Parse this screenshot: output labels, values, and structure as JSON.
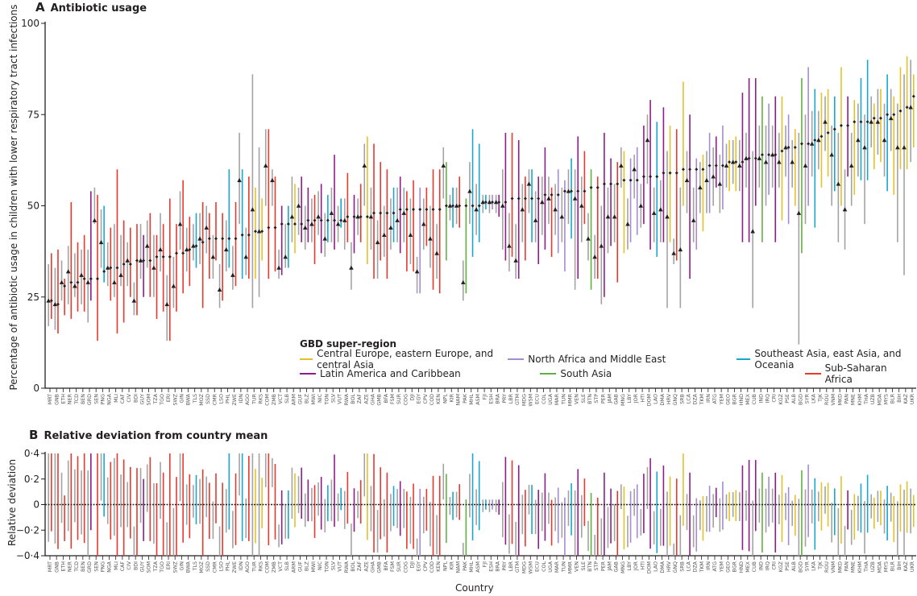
{
  "colors": {
    "Central Europe, eastern Europe, and central Asia": "#e2c22b",
    "Latin America and Caribbean": "#8f1d87",
    "North Africa and Middle East": "#a58bd0",
    "South Asia": "#62b03f",
    "Southeast Asia, east Asia, and Oceania": "#1aa6cd",
    "Sub-Saharan Africa": "#e8392e",
    "other_range": "#a3a3a3",
    "mean_marker": "#231f20"
  },
  "legend": {
    "title": "GBD super-region",
    "entries": [
      "Central Europe, eastern Europe, and central Asia",
      "Latin America and Caribbean",
      "North Africa and Middle East",
      "South Asia",
      "Southeast Asia, east Asia, and Oceania",
      "Sub-Saharan Africa"
    ]
  },
  "chart_data": [
    {
      "type": "scatter",
      "panel": "A",
      "title": "Antibiotic usage",
      "ylabel": "Percentage of antibiotic usage in children with lower respiratory tract infections",
      "xlabel": "",
      "ylim": [
        0,
        100
      ],
      "yticks": [
        "0",
        "25",
        "50",
        "75",
        "100"
      ],
      "fields": [
        "country",
        "super_region_index",
        "mean",
        "range_low",
        "range_high",
        "triangle",
        "gray_low",
        "gray_high"
      ],
      "countries": [
        [
          "MRT",
          5,
          24,
          19,
          37,
          24,
          17,
          34
        ],
        [
          "GNB",
          5,
          23,
          15,
          38,
          23,
          16,
          33
        ],
        [
          "ETH",
          5,
          28,
          20,
          30,
          29,
          24,
          35
        ],
        [
          "NER",
          5,
          29,
          19,
          51,
          32,
          23,
          39
        ],
        [
          "TCD",
          5,
          29,
          21,
          40,
          28,
          25,
          37
        ],
        [
          "BEN",
          5,
          30,
          21,
          42,
          31,
          23,
          38
        ],
        [
          "GRD",
          1,
          30,
          24,
          54,
          29,
          18,
          38
        ],
        [
          "SEN",
          5,
          30,
          13,
          53,
          46,
          45,
          55
        ],
        [
          "PNG",
          4,
          32,
          29,
          50,
          40,
          33,
          49
        ],
        [
          "NGA",
          5,
          33,
          24,
          44,
          33,
          28,
          40
        ],
        [
          "MLI",
          5,
          33,
          15,
          60,
          29,
          25,
          45
        ],
        [
          "CAF",
          5,
          34,
          18,
          46,
          31,
          28,
          42
        ],
        [
          "CIV",
          5,
          34,
          25,
          44,
          35,
          28,
          40
        ],
        [
          "BDI",
          5,
          35,
          20,
          45,
          24,
          20,
          29
        ],
        [
          "GUY",
          1,
          35,
          25,
          42,
          35,
          30,
          45
        ],
        [
          "SOM",
          5,
          35,
          25,
          48,
          39,
          33,
          46
        ],
        [
          "TZA",
          5,
          36,
          19,
          42,
          33,
          25,
          42
        ],
        [
          "TGO",
          5,
          36,
          21,
          45,
          38,
          32,
          48
        ],
        [
          "ERI",
          5,
          36,
          13,
          52,
          23,
          13,
          31
        ],
        [
          "SWZ",
          5,
          37,
          21,
          45,
          28,
          22,
          36
        ],
        [
          "GIN",
          5,
          37,
          26,
          57,
          45,
          38,
          54
        ],
        [
          "BWA",
          5,
          38,
          28,
          47,
          38,
          32,
          44
        ],
        [
          "TLS",
          4,
          39,
          33,
          48,
          39,
          35,
          45
        ],
        [
          "MOZ",
          5,
          40,
          22,
          51,
          41,
          34,
          48
        ],
        [
          "SSD",
          5,
          41,
          30,
          48,
          44,
          37,
          50
        ],
        [
          "CMR",
          5,
          41,
          35,
          51,
          36,
          30,
          42
        ],
        [
          "LSO",
          5,
          41,
          24,
          48,
          27,
          22,
          34
        ],
        [
          "PHL",
          4,
          41,
          33,
          60,
          38,
          32,
          46
        ],
        [
          "ZWE",
          5,
          41,
          28,
          51,
          31,
          27,
          39
        ],
        [
          "IDN",
          4,
          42,
          30,
          60,
          57,
          45,
          70
        ],
        [
          "AGO",
          5,
          42,
          30,
          58,
          36,
          31,
          44
        ],
        [
          "TUR",
          0,
          43,
          30,
          55,
          49,
          22,
          86
        ],
        [
          "RKS",
          0,
          43,
          35,
          52,
          43,
          25,
          66
        ],
        [
          "COM",
          5,
          44,
          30,
          71,
          61,
          50,
          71
        ],
        [
          "ZMB",
          5,
          44,
          32,
          58,
          57,
          50,
          60
        ],
        [
          "VCT",
          1,
          45,
          31,
          50,
          33,
          30,
          38
        ],
        [
          "SLB",
          4,
          45,
          33,
          50,
          36,
          33,
          45
        ],
        [
          "ARM",
          0,
          45,
          37,
          56,
          47,
          40,
          58
        ],
        [
          "GUF",
          1,
          45,
          40,
          58,
          50,
          42,
          55
        ],
        [
          "BLZ",
          1,
          46,
          40,
          55,
          44,
          38,
          50
        ],
        [
          "MWI",
          5,
          46,
          34,
          53,
          45,
          40,
          52
        ],
        [
          "NIC",
          1,
          46,
          37,
          56,
          47,
          42,
          54
        ],
        [
          "TON",
          4,
          46,
          40,
          53,
          41,
          36,
          48
        ],
        [
          "SLV",
          1,
          46,
          38,
          64,
          48,
          40,
          55
        ],
        [
          "VUT",
          4,
          46,
          44,
          52,
          45,
          40,
          50
        ],
        [
          "RWA",
          5,
          47,
          40,
          59,
          46,
          38,
          52
        ],
        [
          "BOL",
          1,
          47,
          37,
          53,
          33,
          27,
          40
        ],
        [
          "ZAF",
          5,
          47,
          40,
          56,
          47,
          42,
          52
        ],
        [
          "AZE",
          0,
          47,
          34,
          69,
          61,
          50,
          67
        ],
        [
          "GHA",
          5,
          48,
          30,
          67,
          47,
          38,
          55
        ],
        [
          "GMB",
          5,
          48,
          35,
          62,
          40,
          30,
          46
        ],
        [
          "BFA",
          5,
          48,
          30,
          60,
          42,
          36,
          50
        ],
        [
          "FSM",
          4,
          48,
          40,
          55,
          44,
          38,
          52
        ],
        [
          "SUR",
          1,
          49,
          37,
          58,
          46,
          40,
          55
        ],
        [
          "COG",
          5,
          49,
          32,
          54,
          48,
          40,
          55
        ],
        [
          "DJI",
          5,
          49,
          32,
          57,
          42,
          34,
          52
        ],
        [
          "EGY",
          2,
          49,
          26,
          55,
          32,
          26,
          36
        ],
        [
          "CPV",
          5,
          49,
          39,
          55,
          45,
          38,
          52
        ],
        [
          "COD",
          5,
          49,
          27,
          60,
          41,
          33,
          50
        ],
        [
          "KEN",
          5,
          49,
          26,
          60,
          37,
          30,
          45
        ],
        [
          "NPL",
          3,
          50,
          35,
          62,
          61,
          52,
          66
        ],
        [
          "KIR",
          4,
          50,
          44,
          55,
          50,
          46,
          53
        ],
        [
          "NAM",
          5,
          50,
          44,
          58,
          50,
          45,
          55
        ],
        [
          "PAK",
          3,
          50,
          26,
          52,
          29,
          24,
          35
        ],
        [
          "MHL",
          4,
          50,
          36,
          71,
          54,
          45,
          62
        ],
        [
          "ASM",
          4,
          50,
          40,
          67,
          49,
          42,
          56
        ],
        [
          "FJI",
          4,
          51,
          49,
          53,
          51,
          48,
          53
        ],
        [
          "ESH",
          2,
          51,
          49,
          53,
          51,
          48,
          53
        ],
        [
          "BRA",
          1,
          51,
          47,
          53,
          51,
          48,
          53
        ],
        [
          "PRY",
          1,
          51,
          35,
          70,
          50,
          38,
          60
        ],
        [
          "LBR",
          5,
          52,
          36,
          70,
          39,
          32,
          48
        ],
        [
          "GTM",
          1,
          52,
          30,
          68,
          35,
          30,
          45
        ],
        [
          "MDG",
          5,
          52,
          35,
          58,
          49,
          40,
          56
        ],
        [
          "WSM",
          4,
          52,
          40,
          60,
          56,
          48,
          60
        ],
        [
          "ECU",
          1,
          52,
          34,
          58,
          46,
          40,
          54
        ],
        [
          "COL",
          1,
          53,
          38,
          66,
          51,
          42,
          58
        ],
        [
          "UGA",
          5,
          53,
          36,
          55,
          52,
          45,
          58
        ],
        [
          "MAR",
          2,
          53,
          37,
          60,
          49,
          42,
          56
        ],
        [
          "TUN",
          2,
          54,
          32,
          57,
          47,
          40,
          55
        ],
        [
          "MMR",
          4,
          54,
          41,
          63,
          54,
          45,
          60
        ],
        [
          "VEN",
          1,
          54,
          30,
          69,
          52,
          27,
          60
        ],
        [
          "SLE",
          5,
          54,
          45,
          65,
          50,
          40,
          58
        ],
        [
          "BTN",
          3,
          55,
          27,
          60,
          41,
          35,
          48
        ],
        [
          "STP",
          5,
          55,
          30,
          58,
          36,
          30,
          42
        ],
        [
          "PER",
          1,
          56,
          25,
          70,
          39,
          23,
          50
        ],
        [
          "JAM",
          1,
          56,
          39,
          63,
          47,
          37,
          55
        ],
        [
          "GAB",
          5,
          56,
          29,
          62,
          47,
          40,
          56
        ],
        [
          "MNG",
          0,
          57,
          37,
          65,
          61,
          55,
          66
        ],
        [
          "LBY",
          2,
          57,
          40,
          63,
          45,
          38,
          52
        ],
        [
          "JOR",
          2,
          57,
          42,
          66,
          60,
          52,
          64
        ],
        [
          "HTI",
          1,
          58,
          45,
          72,
          50,
          44,
          56
        ],
        [
          "DOM",
          1,
          58,
          38,
          79,
          68,
          56,
          75
        ],
        [
          "LAO",
          4,
          58,
          36,
          73,
          48,
          40,
          55
        ],
        [
          "DMA",
          1,
          59,
          40,
          77,
          49,
          40,
          57
        ],
        [
          "HRV",
          0,
          59,
          40,
          72,
          47,
          22,
          65
        ],
        [
          "GNQ",
          5,
          59,
          35,
          71,
          37,
          34,
          41
        ],
        [
          "SRB",
          0,
          60,
          50,
          84,
          38,
          22,
          55
        ],
        [
          "LCA",
          1,
          60,
          30,
          75,
          57,
          48,
          65
        ],
        [
          "DZA",
          2,
          60,
          38,
          63,
          46,
          40,
          55
        ],
        [
          "TKM",
          0,
          60,
          43,
          64,
          55,
          48,
          62
        ],
        [
          "IRN",
          2,
          61,
          48,
          70,
          57,
          48,
          65
        ],
        [
          "ATG",
          1,
          61,
          55,
          69,
          58,
          50,
          66
        ],
        [
          "YEM",
          2,
          61,
          49,
          72,
          56,
          48,
          64
        ],
        [
          "GEO",
          0,
          62,
          54,
          68,
          61,
          55,
          67
        ],
        [
          "BGR",
          0,
          62,
          54,
          69,
          62,
          56,
          68
        ],
        [
          "HND",
          1,
          62,
          40,
          81,
          61,
          54,
          68
        ],
        [
          "MEX",
          1,
          63,
          40,
          85,
          63,
          55,
          70
        ],
        [
          "CUB",
          1,
          63,
          50,
          85,
          43,
          22,
          65
        ],
        [
          "IND",
          3,
          64,
          40,
          80,
          63,
          55,
          72
        ],
        [
          "IRQ",
          2,
          64,
          53,
          78,
          62,
          50,
          72
        ],
        [
          "CRI",
          1,
          64,
          40,
          80,
          64,
          55,
          72
        ],
        [
          "KGZ",
          0,
          65,
          46,
          80,
          62,
          55,
          70
        ],
        [
          "PSE",
          2,
          66,
          45,
          75,
          66,
          58,
          72
        ],
        [
          "ALB",
          0,
          66,
          50,
          71,
          62,
          55,
          68
        ],
        [
          "BGD",
          3,
          67,
          37,
          85,
          48,
          12,
          70
        ],
        [
          "SYR",
          2,
          67,
          50,
          88,
          61,
          45,
          75
        ],
        [
          "LKA",
          4,
          68,
          44,
          82,
          67,
          58,
          76
        ],
        [
          "TJK",
          0,
          69,
          55,
          81,
          68,
          60,
          76
        ],
        [
          "ROU",
          0,
          70,
          58,
          82,
          73,
          65,
          80
        ],
        [
          "VNM",
          4,
          71,
          54,
          80,
          64,
          50,
          72
        ],
        [
          "MKD",
          0,
          72,
          50,
          88,
          56,
          40,
          70
        ],
        [
          "PAN",
          1,
          72,
          58,
          80,
          49,
          38,
          60
        ],
        [
          "MNE",
          0,
          73,
          53,
          79,
          61,
          50,
          70
        ],
        [
          "KHM",
          4,
          73,
          57,
          85,
          68,
          58,
          78
        ],
        [
          "THA",
          4,
          73,
          57,
          90,
          66,
          45,
          75
        ],
        [
          "UZB",
          0,
          74,
          60,
          78,
          73,
          66,
          80
        ],
        [
          "MDA",
          0,
          74,
          62,
          82,
          73,
          64,
          82
        ],
        [
          "MYS",
          4,
          75,
          54,
          86,
          68,
          58,
          78
        ],
        [
          "BLR",
          0,
          75,
          53,
          80,
          74,
          65,
          82
        ],
        [
          "BIH",
          0,
          76,
          60,
          88,
          66,
          40,
          78
        ],
        [
          "KAZ",
          0,
          77,
          60,
          91,
          66,
          31,
          86
        ],
        [
          "UKR",
          0,
          80,
          66,
          86,
          77,
          62,
          90
        ]
      ]
    },
    {
      "type": "bar",
      "panel": "B",
      "title": "Relative deviation from country mean",
      "ylabel": "Relative deviation",
      "xlabel": "Country",
      "ylim": [
        -0.4,
        0.4
      ],
      "yticks": [
        "−0·4",
        "−0·2",
        "0",
        "0·2",
        "0·4"
      ],
      "reference_line": 0
    }
  ]
}
